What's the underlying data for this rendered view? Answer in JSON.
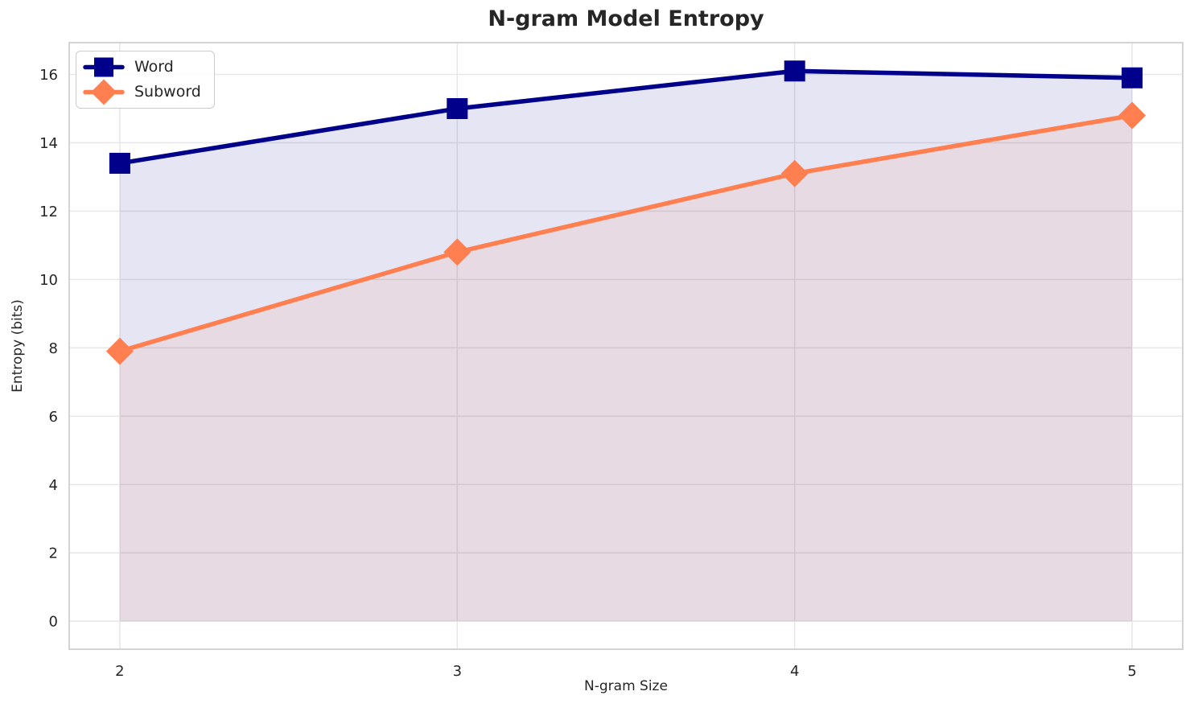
{
  "chart_data": {
    "type": "line",
    "title": "N-gram Model Entropy",
    "xlabel": "N-gram Size",
    "ylabel": "Entropy (bits)",
    "x": [
      2,
      3,
      4,
      5
    ],
    "series": [
      {
        "name": "Word",
        "values": [
          13.4,
          15.0,
          16.1,
          15.9
        ],
        "color": "#00008B",
        "marker": "square",
        "fill_alpha": 0.1
      },
      {
        "name": "Subword",
        "values": [
          7.9,
          10.8,
          13.1,
          14.8
        ],
        "color": "#FF7F50",
        "marker": "diamond",
        "fill_alpha": 0.1
      }
    ],
    "xticks": [
      2,
      3,
      4,
      5
    ],
    "yticks": [
      0,
      2,
      4,
      6,
      8,
      10,
      12,
      14,
      16
    ],
    "xlim": [
      1.85,
      5.15
    ],
    "ylim": [
      -0.82,
      16.93
    ],
    "fill_baseline": 0,
    "grid": true,
    "legend_position": "upper-left"
  },
  "colors": {
    "grid": "#e8e8e8",
    "spine": "#d4d4d4",
    "text": "#262626",
    "background": "#ffffff"
  }
}
